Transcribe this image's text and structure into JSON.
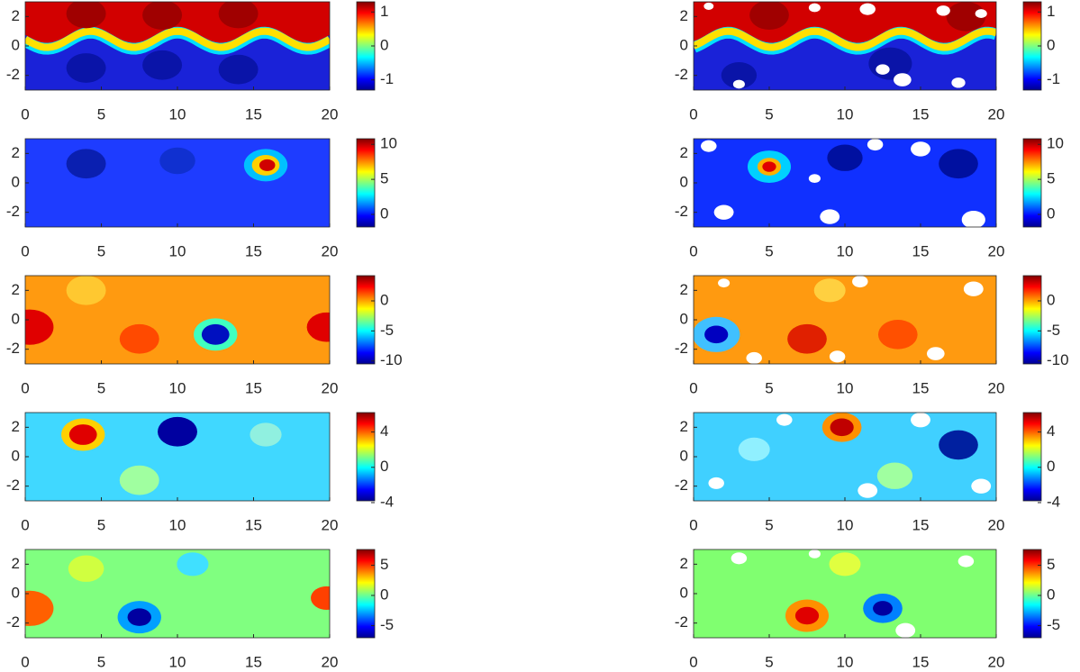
{
  "chart_data": [
    {
      "type": "heatmap",
      "xlim": [
        0,
        20
      ],
      "ylim": [
        -3,
        3
      ],
      "xticks": [
        0,
        5,
        10,
        15,
        20
      ],
      "yticks": [
        -2,
        0,
        2
      ],
      "clim": [
        -1.3,
        1.3
      ],
      "cticks": [
        -1,
        0,
        1
      ]
    },
    {
      "type": "heatmap",
      "xlim": [
        0,
        20
      ],
      "ylim": [
        -3,
        3
      ],
      "xticks": [
        0,
        5,
        10,
        15,
        20
      ],
      "yticks": [
        -2,
        0,
        2
      ],
      "clim": [
        -1.3,
        1.3
      ],
      "cticks": [
        -1,
        0,
        1
      ]
    },
    {
      "type": "heatmap",
      "xlim": [
        0,
        20
      ],
      "ylim": [
        -3,
        3
      ],
      "xticks": [
        0,
        5,
        10,
        15,
        20
      ],
      "yticks": [
        -2,
        0,
        2
      ],
      "clim": [
        -1.8,
        10.8
      ],
      "cticks": [
        0,
        5,
        10
      ]
    },
    {
      "type": "heatmap",
      "xlim": [
        0,
        20
      ],
      "ylim": [
        -3,
        3
      ],
      "xticks": [
        0,
        5,
        10,
        15,
        20
      ],
      "yticks": [
        -2,
        0,
        2
      ],
      "clim": [
        -1.8,
        10.8
      ],
      "cticks": [
        0,
        5,
        10
      ]
    },
    {
      "type": "heatmap",
      "xlim": [
        0,
        20
      ],
      "ylim": [
        -3,
        3
      ],
      "xticks": [
        0,
        5,
        10,
        15,
        20
      ],
      "yticks": [
        -2,
        0,
        2
      ],
      "clim": [
        -10.5,
        4.2
      ],
      "cticks": [
        -10,
        -5,
        0
      ]
    },
    {
      "type": "heatmap",
      "xlim": [
        0,
        20
      ],
      "ylim": [
        -3,
        3
      ],
      "xticks": [
        0,
        5,
        10,
        15,
        20
      ],
      "yticks": [
        -2,
        0,
        2
      ],
      "clim": [
        -10.5,
        4.2
      ],
      "cticks": [
        -10,
        -5,
        0
      ]
    },
    {
      "type": "heatmap",
      "xlim": [
        0,
        20
      ],
      "ylim": [
        -3,
        3
      ],
      "xticks": [
        0,
        5,
        10,
        15,
        20
      ],
      "yticks": [
        -2,
        0,
        2
      ],
      "clim": [
        -3.8,
        6.2
      ],
      "cticks": [
        -4,
        0,
        4
      ]
    },
    {
      "type": "heatmap",
      "xlim": [
        0,
        20
      ],
      "ylim": [
        -3,
        3
      ],
      "xticks": [
        0,
        5,
        10,
        15,
        20
      ],
      "yticks": [
        -2,
        0,
        2
      ],
      "clim": [
        -3.8,
        6.2
      ],
      "cticks": [
        -4,
        0,
        4
      ]
    },
    {
      "type": "heatmap",
      "xlim": [
        0,
        20
      ],
      "ylim": [
        -3,
        3
      ],
      "xticks": [
        0,
        5,
        10,
        15,
        20
      ],
      "yticks": [
        -2,
        0,
        2
      ],
      "clim": [
        -7,
        7.6
      ],
      "cticks": [
        -5,
        0,
        5
      ]
    },
    {
      "type": "heatmap",
      "xlim": [
        0,
        20
      ],
      "ylim": [
        -3,
        3
      ],
      "xticks": [
        0,
        5,
        10,
        15,
        20
      ],
      "yticks": [
        -2,
        0,
        2
      ],
      "clim": [
        -7,
        7.6
      ],
      "cticks": [
        -5,
        0,
        5
      ]
    }
  ]
}
